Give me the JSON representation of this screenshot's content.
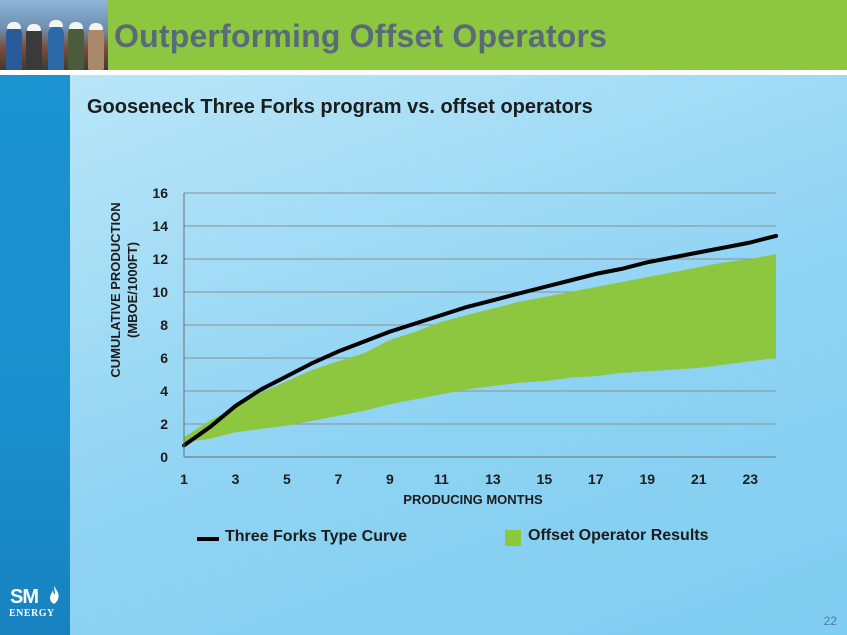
{
  "header": {
    "title": "Outperforming Offset Operators"
  },
  "subtitle": "Gooseneck Three Forks program vs. offset operators",
  "branding": {
    "logo_text": "SM",
    "logo_subtext": "ENERGY",
    "page_number": "22"
  },
  "colors": {
    "title_bar": "#8dc63f",
    "title_text": "#5a6b78",
    "left_band": "#1b93d0",
    "band_fill": "#8dc63f",
    "type_curve": "#000000"
  },
  "chart_data": {
    "type": "line",
    "xlabel": "PRODUCING MONTHS",
    "ylabel": [
      "CUMULATIVE PRODUCTION",
      "(MBOE/1000FT)"
    ],
    "xlim": [
      1,
      24
    ],
    "ylim": [
      0,
      16
    ],
    "x_ticks": [
      1,
      3,
      5,
      7,
      9,
      11,
      13,
      15,
      17,
      19,
      21,
      23
    ],
    "y_ticks": [
      0,
      2,
      4,
      6,
      8,
      10,
      12,
      14,
      16
    ],
    "grid": "horizontal",
    "legend_position": "bottom",
    "series": [
      {
        "name": "Three Forks Type Curve",
        "kind": "line",
        "color": "#000000",
        "x": [
          1,
          2,
          3,
          4,
          5,
          6,
          7,
          8,
          9,
          10,
          11,
          12,
          13,
          14,
          15,
          16,
          17,
          18,
          19,
          20,
          21,
          22,
          23,
          24
        ],
        "values": [
          0.7,
          1.8,
          3.1,
          4.1,
          4.9,
          5.7,
          6.4,
          7.0,
          7.6,
          8.1,
          8.6,
          9.1,
          9.5,
          9.9,
          10.3,
          10.7,
          11.1,
          11.4,
          11.8,
          12.1,
          12.4,
          12.7,
          13.0,
          13.4
        ]
      },
      {
        "name": "Offset Operator Results",
        "kind": "band",
        "color": "#8dc63f",
        "x": [
          1,
          2,
          3,
          4,
          5,
          6,
          7,
          8,
          9,
          10,
          11,
          12,
          13,
          14,
          15,
          16,
          17,
          18,
          19,
          20,
          21,
          22,
          23,
          24
        ],
        "upper": [
          1.2,
          2.2,
          3.0,
          3.9,
          4.6,
          5.3,
          5.8,
          6.3,
          7.1,
          7.6,
          8.2,
          8.6,
          9.0,
          9.4,
          9.7,
          10.0,
          10.3,
          10.6,
          10.9,
          11.2,
          11.5,
          11.8,
          12.0,
          12.3
        ],
        "lower": [
          0.9,
          1.1,
          1.5,
          1.7,
          1.9,
          2.2,
          2.5,
          2.8,
          3.2,
          3.5,
          3.8,
          4.1,
          4.3,
          4.5,
          4.6,
          4.8,
          4.9,
          5.1,
          5.2,
          5.3,
          5.4,
          5.6,
          5.8,
          6.0
        ]
      }
    ]
  }
}
